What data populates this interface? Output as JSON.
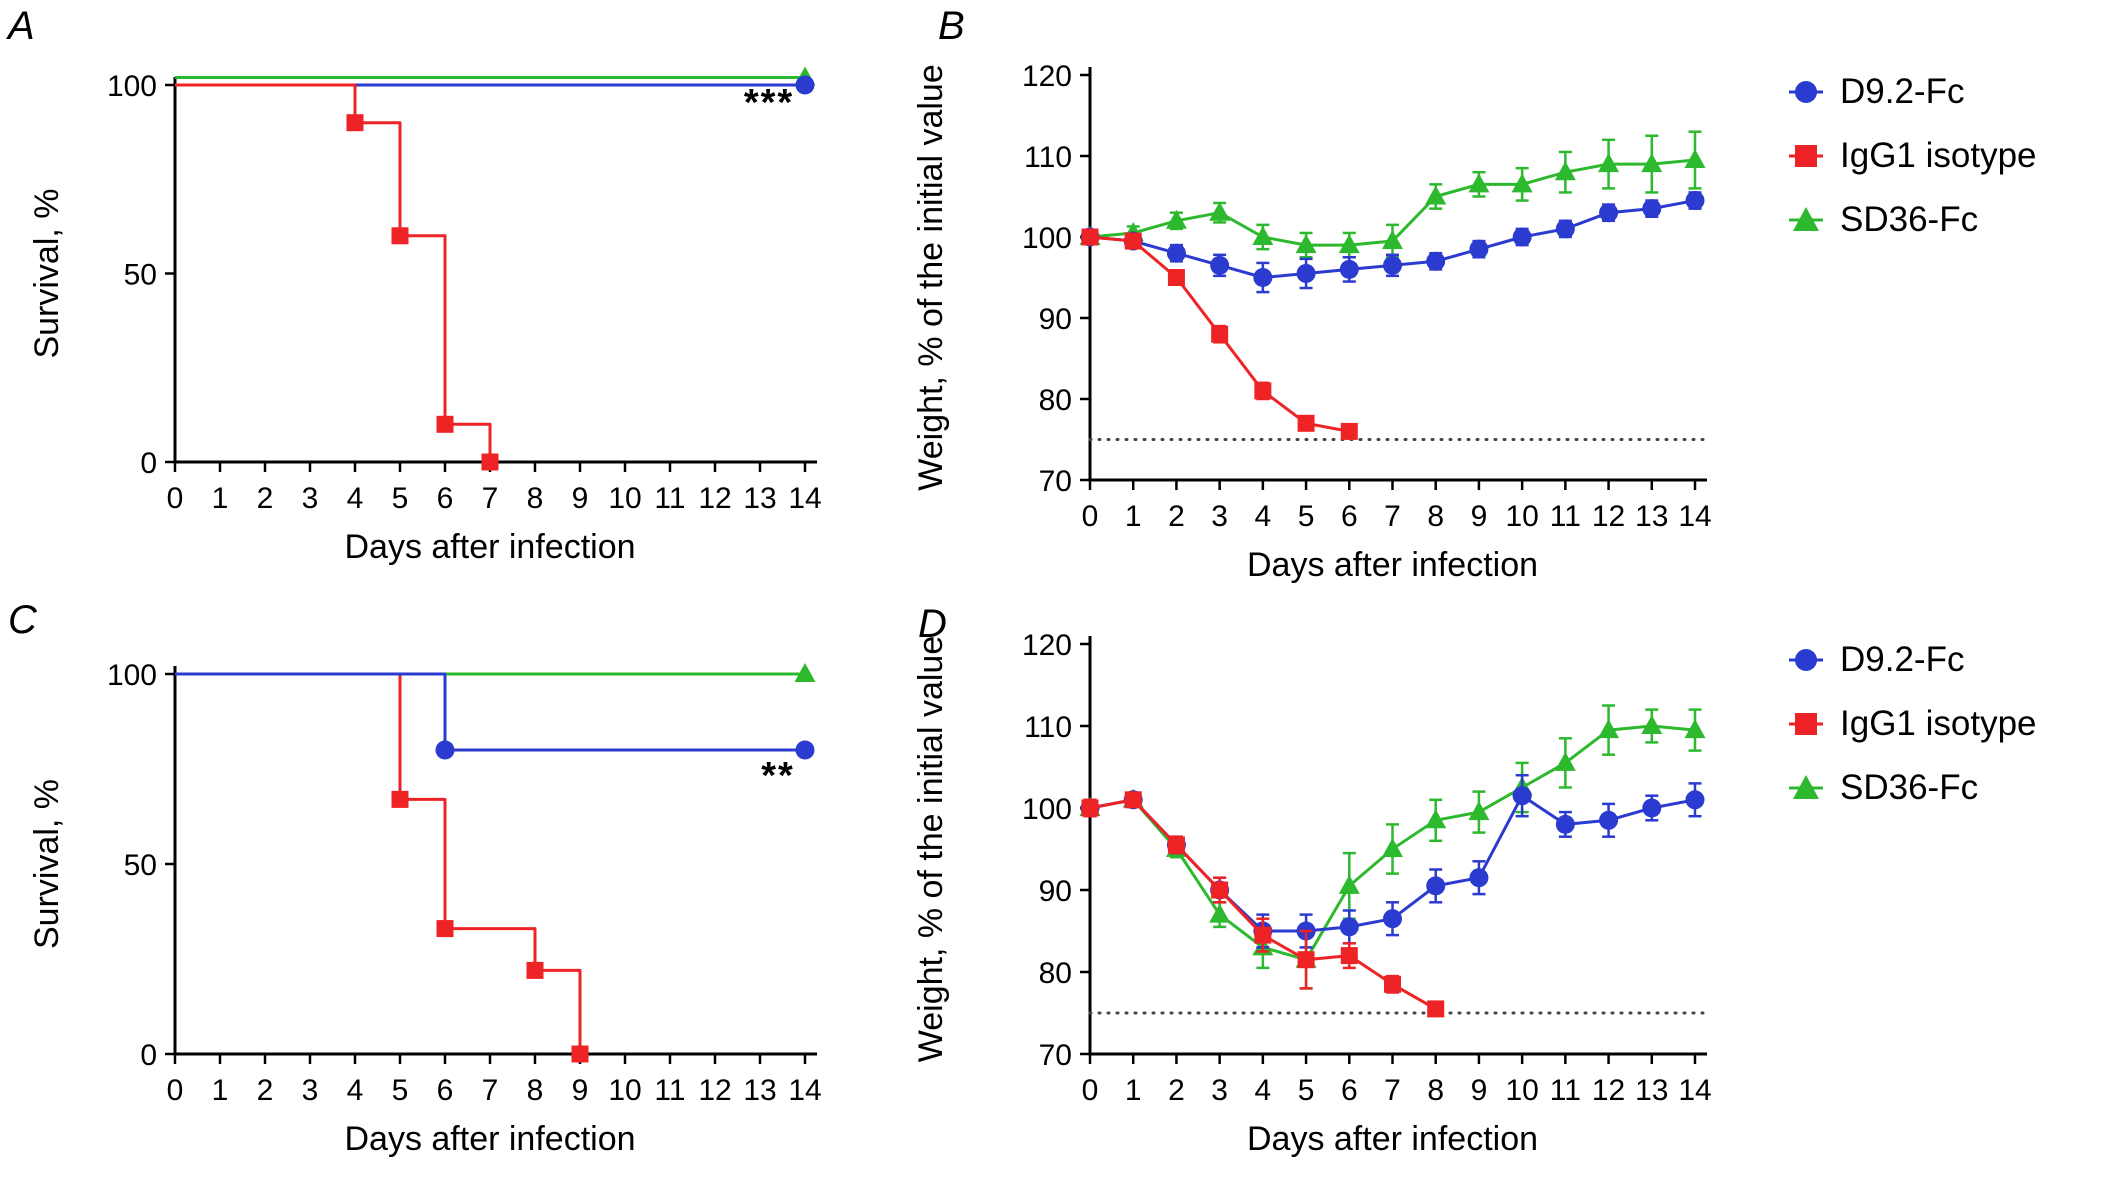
{
  "figure": {
    "background": "#ffffff",
    "panels": [
      {
        "label": "A",
        "kind": "survival"
      },
      {
        "label": "B",
        "kind": "weight"
      },
      {
        "label": "C",
        "kind": "survival"
      },
      {
        "label": "D",
        "kind": "weight"
      }
    ]
  },
  "colors": {
    "blue": "#2b3acf",
    "red": "#ee2325",
    "green": "#2db92d",
    "axis": "#000000",
    "reference": "#444444"
  },
  "chart_data": [
    {
      "panel": "A",
      "type": "line",
      "variant": "survival-step",
      "xlabel": "Days after infection",
      "ylabel": "Survival, %",
      "xlim": [
        0,
        14
      ],
      "ylim": [
        0,
        100
      ],
      "xticks": [
        0,
        1,
        2,
        3,
        4,
        5,
        6,
        7,
        8,
        9,
        10,
        11,
        12,
        13,
        14
      ],
      "yticks": [
        0,
        50,
        100
      ],
      "annotation": {
        "text": "***",
        "x": 13.2,
        "y": 92
      },
      "draw_order": [
        2,
        0,
        1
      ],
      "series": [
        {
          "name": "D9.2-Fc",
          "color_key": "blue",
          "marker": "circle",
          "step_points": [
            [
              0,
              100
            ],
            [
              14,
              100
            ]
          ],
          "markers_at": [
            [
              14,
              100
            ]
          ]
        },
        {
          "name": "IgG1 isotype",
          "color_key": "red",
          "marker": "square",
          "step_points": [
            [
              0,
              100
            ],
            [
              4,
              100
            ],
            [
              4,
              90
            ],
            [
              5,
              90
            ],
            [
              5,
              60
            ],
            [
              6,
              60
            ],
            [
              6,
              10
            ],
            [
              7,
              10
            ],
            [
              7,
              0
            ]
          ],
          "markers_at": [
            [
              4,
              90
            ],
            [
              5,
              60
            ],
            [
              6,
              10
            ],
            [
              7,
              0
            ]
          ]
        },
        {
          "name": "SD36-Fc",
          "color_key": "green",
          "marker": "triangle",
          "step_points": [
            [
              0,
              100
            ],
            [
              14,
              100
            ]
          ],
          "markers_at": [
            [
              14,
              100
            ]
          ],
          "draw_offset_y": 2
        }
      ]
    },
    {
      "panel": "B",
      "type": "line",
      "variant": "mean-with-error-bars",
      "xlabel": "Days after infection",
      "ylabel": "Weight, % of the initial value",
      "xlim": [
        0,
        14
      ],
      "ylim": [
        70,
        120
      ],
      "xticks": [
        0,
        1,
        2,
        3,
        4,
        5,
        6,
        7,
        8,
        9,
        10,
        11,
        12,
        13,
        14
      ],
      "yticks": [
        70,
        80,
        90,
        100,
        110,
        120
      ],
      "reference_line_y": 75,
      "legend_position": "right",
      "draw_order": [
        2,
        0,
        1
      ],
      "series": [
        {
          "name": "D9.2-Fc",
          "color_key": "blue",
          "marker": "circle",
          "x": [
            0,
            1,
            2,
            3,
            4,
            5,
            6,
            7,
            8,
            9,
            10,
            11,
            12,
            13,
            14
          ],
          "y": [
            100,
            99.5,
            98,
            96.5,
            95,
            95.5,
            96,
            96.5,
            97,
            98.5,
            100,
            101,
            103,
            103.5,
            104.5
          ],
          "err": [
            0.5,
            0.8,
            1,
            1.3,
            1.8,
            1.8,
            1.5,
            1.3,
            1,
            1,
            1,
            1,
            1,
            1,
            1
          ]
        },
        {
          "name": "IgG1 isotype",
          "color_key": "red",
          "marker": "square",
          "x": [
            0,
            1,
            2,
            3,
            4,
            5,
            6
          ],
          "y": [
            100,
            99.5,
            95,
            88,
            81,
            77,
            76
          ],
          "err": [
            0.5,
            0.5,
            0.8,
            1,
            1,
            0.8,
            0.6
          ]
        },
        {
          "name": "SD36-Fc",
          "color_key": "green",
          "marker": "triangle",
          "x": [
            0,
            1,
            2,
            3,
            4,
            5,
            6,
            7,
            8,
            9,
            10,
            11,
            12,
            13,
            14
          ],
          "y": [
            100,
            100.5,
            102,
            103,
            100,
            99,
            99,
            99.5,
            105,
            106.5,
            106.5,
            108,
            109,
            109,
            109.5
          ],
          "err": [
            0.5,
            0.8,
            1,
            1.2,
            1.5,
            1.5,
            1.5,
            2,
            1.5,
            1.5,
            2,
            2.5,
            3,
            3.5,
            3.5
          ]
        }
      ]
    },
    {
      "panel": "C",
      "type": "line",
      "variant": "survival-step",
      "xlabel": "Days after infection",
      "ylabel": "Survival, %",
      "xlim": [
        0,
        14
      ],
      "ylim": [
        0,
        100
      ],
      "xticks": [
        0,
        1,
        2,
        3,
        4,
        5,
        6,
        7,
        8,
        9,
        10,
        11,
        12,
        13,
        14
      ],
      "yticks": [
        0,
        50,
        100
      ],
      "annotation": {
        "text": "**",
        "x": 13.4,
        "y": 70
      },
      "draw_order": [
        2,
        1,
        0
      ],
      "series": [
        {
          "name": "D9.2-Fc",
          "color_key": "blue",
          "marker": "circle",
          "step_points": [
            [
              0,
              100
            ],
            [
              6,
              100
            ],
            [
              6,
              80
            ],
            [
              14,
              80
            ]
          ],
          "markers_at": [
            [
              6,
              80
            ],
            [
              14,
              80
            ]
          ]
        },
        {
          "name": "IgG1 isotype",
          "color_key": "red",
          "marker": "square",
          "step_points": [
            [
              0,
              100
            ],
            [
              5,
              100
            ],
            [
              5,
              67
            ],
            [
              6,
              67
            ],
            [
              6,
              33
            ],
            [
              8,
              33
            ],
            [
              8,
              22
            ],
            [
              9,
              22
            ],
            [
              9,
              0
            ]
          ],
          "markers_at": [
            [
              5,
              67
            ],
            [
              6,
              33
            ],
            [
              8,
              22
            ],
            [
              9,
              0
            ]
          ]
        },
        {
          "name": "SD36-Fc",
          "color_key": "green",
          "marker": "triangle",
          "step_points": [
            [
              0,
              100
            ],
            [
              14,
              100
            ]
          ],
          "markers_at": [
            [
              14,
              100
            ]
          ]
        }
      ]
    },
    {
      "panel": "D",
      "type": "line",
      "variant": "mean-with-error-bars",
      "xlabel": "Days after infection",
      "ylabel": "Weight, % of the initial value",
      "xlim": [
        0,
        14
      ],
      "ylim": [
        70,
        120
      ],
      "xticks": [
        0,
        1,
        2,
        3,
        4,
        5,
        6,
        7,
        8,
        9,
        10,
        11,
        12,
        13,
        14
      ],
      "yticks": [
        70,
        80,
        90,
        100,
        110,
        120
      ],
      "reference_line_y": 75,
      "legend_position": "right",
      "draw_order": [
        2,
        0,
        1
      ],
      "series": [
        {
          "name": "D9.2-Fc",
          "color_key": "blue",
          "marker": "circle",
          "x": [
            0,
            1,
            2,
            3,
            4,
            5,
            6,
            7,
            8,
            9,
            10,
            11,
            12,
            13,
            14
          ],
          "y": [
            100,
            101,
            95.5,
            90,
            85,
            85,
            85.5,
            86.5,
            90.5,
            91.5,
            101.5,
            98,
            98.5,
            100,
            101
          ],
          "err": [
            1,
            0.8,
            1,
            1.5,
            2,
            2,
            2,
            2,
            2,
            2,
            2.5,
            1.5,
            2,
            1.5,
            2
          ]
        },
        {
          "name": "IgG1 isotype",
          "color_key": "red",
          "marker": "square",
          "x": [
            0,
            1,
            2,
            3,
            4,
            5,
            6,
            7,
            8
          ],
          "y": [
            100,
            101,
            95.5,
            90,
            84.5,
            81.5,
            82,
            78.5,
            75.5
          ],
          "err": [
            1,
            0.8,
            1,
            1.5,
            2,
            3.5,
            1.5,
            1,
            0.5
          ]
        },
        {
          "name": "SD36-Fc",
          "color_key": "green",
          "marker": "triangle",
          "x": [
            0,
            1,
            2,
            3,
            4,
            5,
            6,
            7,
            8,
            9,
            10,
            11,
            12,
            13,
            14
          ],
          "y": [
            100,
            101,
            95,
            87,
            83,
            81.5,
            90.5,
            95,
            98.5,
            99.5,
            102.5,
            105.5,
            109.5,
            110,
            109.5
          ],
          "err": [
            1,
            0.8,
            1,
            1.5,
            2.5,
            3.5,
            4,
            3,
            2.5,
            2.5,
            3,
            3,
            3,
            2,
            2.5
          ]
        }
      ]
    }
  ]
}
